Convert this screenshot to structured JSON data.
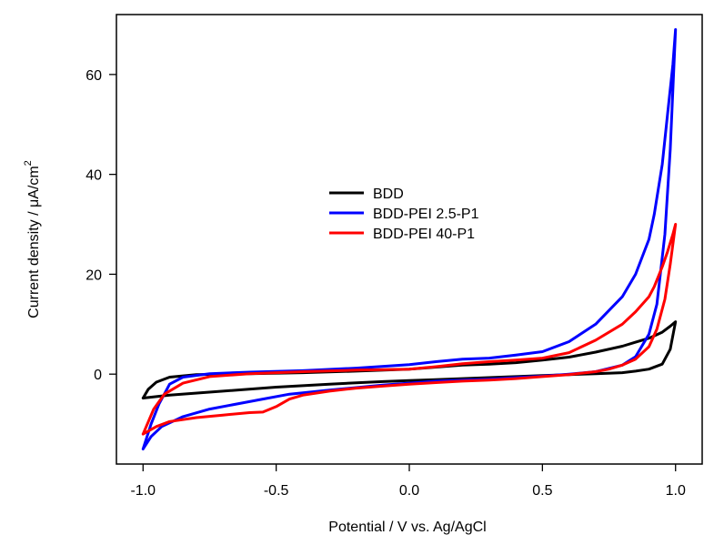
{
  "chart_data": {
    "type": "line",
    "title": "",
    "xlabel": "Potential / V vs. Ag/AgCl",
    "ylabel": "Current density / μA/cm",
    "ylabel_superscript": "2",
    "xlim": [
      -1.1,
      1.1
    ],
    "ylim": [
      -18,
      72
    ],
    "x_ticks": [
      -1.0,
      -0.5,
      0.0,
      0.5,
      1.0
    ],
    "x_tick_labels": [
      "-1.0",
      "-0.5",
      "0.0",
      "0.5",
      "1.0"
    ],
    "y_ticks": [
      0,
      20,
      40,
      60
    ],
    "y_tick_labels": [
      "0",
      "20",
      "40",
      "60"
    ],
    "grid": false,
    "legend_position": "center",
    "series": [
      {
        "name": "BDD",
        "color": "#000000",
        "points": [
          [
            -1.0,
            -4.8
          ],
          [
            -0.9,
            -4.2
          ],
          [
            -0.7,
            -3.4
          ],
          [
            -0.5,
            -2.6
          ],
          [
            -0.3,
            -2.0
          ],
          [
            -0.1,
            -1.5
          ],
          [
            0.0,
            -1.3
          ],
          [
            0.1,
            -1.1
          ],
          [
            0.2,
            -0.9
          ],
          [
            0.3,
            -0.7
          ],
          [
            0.4,
            -0.5
          ],
          [
            0.5,
            -0.3
          ],
          [
            0.6,
            -0.1
          ],
          [
            0.7,
            0.1
          ],
          [
            0.8,
            0.3
          ],
          [
            0.85,
            0.6
          ],
          [
            0.9,
            1.0
          ],
          [
            0.95,
            2.0
          ],
          [
            0.98,
            5.0
          ],
          [
            1.0,
            10.5
          ],
          [
            0.98,
            9.6
          ],
          [
            0.95,
            8.4
          ],
          [
            0.9,
            7.2
          ],
          [
            0.85,
            6.4
          ],
          [
            0.8,
            5.6
          ],
          [
            0.7,
            4.4
          ],
          [
            0.6,
            3.4
          ],
          [
            0.5,
            2.8
          ],
          [
            0.4,
            2.3
          ],
          [
            0.3,
            2.0
          ],
          [
            0.2,
            1.8
          ],
          [
            0.1,
            1.4
          ],
          [
            0.0,
            1.0
          ],
          [
            -0.2,
            0.6
          ],
          [
            -0.4,
            0.3
          ],
          [
            -0.6,
            0.1
          ],
          [
            -0.8,
            -0.1
          ],
          [
            -0.9,
            -0.6
          ],
          [
            -0.95,
            -1.6
          ],
          [
            -0.98,
            -3.0
          ],
          [
            -1.0,
            -4.8
          ]
        ]
      },
      {
        "name": "BDD-PEI 2.5-P1",
        "color": "#0000ff",
        "points": [
          [
            -1.0,
            -15.0
          ],
          [
            -0.97,
            -12.5
          ],
          [
            -0.93,
            -10.5
          ],
          [
            -0.85,
            -8.5
          ],
          [
            -0.75,
            -7.0
          ],
          [
            -0.65,
            -6.0
          ],
          [
            -0.55,
            -5.0
          ],
          [
            -0.45,
            -4.0
          ],
          [
            -0.3,
            -3.2
          ],
          [
            -0.1,
            -2.2
          ],
          [
            0.0,
            -1.8
          ],
          [
            0.1,
            -1.4
          ],
          [
            0.2,
            -1.2
          ],
          [
            0.3,
            -1.0
          ],
          [
            0.4,
            -0.7
          ],
          [
            0.5,
            -0.4
          ],
          [
            0.6,
            0.0
          ],
          [
            0.7,
            0.5
          ],
          [
            0.8,
            1.8
          ],
          [
            0.85,
            3.5
          ],
          [
            0.9,
            8.0
          ],
          [
            0.93,
            14.0
          ],
          [
            0.96,
            28.0
          ],
          [
            0.98,
            45.0
          ],
          [
            1.0,
            69.0
          ],
          [
            0.99,
            62.0
          ],
          [
            0.97,
            52.0
          ],
          [
            0.95,
            42.0
          ],
          [
            0.92,
            32.0
          ],
          [
            0.9,
            27.0
          ],
          [
            0.85,
            20.0
          ],
          [
            0.8,
            15.5
          ],
          [
            0.7,
            10.0
          ],
          [
            0.6,
            6.5
          ],
          [
            0.5,
            4.5
          ],
          [
            0.4,
            3.8
          ],
          [
            0.3,
            3.2
          ],
          [
            0.2,
            3.0
          ],
          [
            0.1,
            2.5
          ],
          [
            0.0,
            1.9
          ],
          [
            -0.2,
            1.2
          ],
          [
            -0.4,
            0.7
          ],
          [
            -0.6,
            0.4
          ],
          [
            -0.75,
            0.1
          ],
          [
            -0.85,
            -0.6
          ],
          [
            -0.9,
            -2.0
          ],
          [
            -0.94,
            -6.0
          ],
          [
            -0.97,
            -10.0
          ],
          [
            -1.0,
            -15.0
          ]
        ]
      },
      {
        "name": "BDD-PEI 40-P1",
        "color": "#ff0000",
        "points": [
          [
            -1.0,
            -12.0
          ],
          [
            -0.95,
            -10.5
          ],
          [
            -0.9,
            -9.5
          ],
          [
            -0.8,
            -8.7
          ],
          [
            -0.7,
            -8.2
          ],
          [
            -0.6,
            -7.7
          ],
          [
            -0.55,
            -7.6
          ],
          [
            -0.5,
            -6.5
          ],
          [
            -0.45,
            -5.0
          ],
          [
            -0.4,
            -4.2
          ],
          [
            -0.3,
            -3.4
          ],
          [
            -0.2,
            -2.8
          ],
          [
            -0.1,
            -2.4
          ],
          [
            0.0,
            -2.0
          ],
          [
            0.1,
            -1.7
          ],
          [
            0.2,
            -1.4
          ],
          [
            0.3,
            -1.2
          ],
          [
            0.4,
            -0.9
          ],
          [
            0.5,
            -0.5
          ],
          [
            0.6,
            -0.1
          ],
          [
            0.7,
            0.5
          ],
          [
            0.75,
            1.0
          ],
          [
            0.8,
            1.8
          ],
          [
            0.85,
            3.0
          ],
          [
            0.9,
            5.5
          ],
          [
            0.93,
            9.0
          ],
          [
            0.96,
            15.0
          ],
          [
            0.98,
            22.0
          ],
          [
            1.0,
            30.0
          ],
          [
            0.99,
            28.0
          ],
          [
            0.97,
            24.5
          ],
          [
            0.95,
            21.5
          ],
          [
            0.92,
            17.5
          ],
          [
            0.9,
            15.5
          ],
          [
            0.85,
            12.5
          ],
          [
            0.8,
            10.0
          ],
          [
            0.7,
            6.8
          ],
          [
            0.6,
            4.3
          ],
          [
            0.5,
            3.2
          ],
          [
            0.4,
            2.8
          ],
          [
            0.3,
            2.5
          ],
          [
            0.2,
            2.1
          ],
          [
            0.1,
            1.5
          ],
          [
            0.0,
            1.0
          ],
          [
            -0.2,
            0.8
          ],
          [
            -0.4,
            0.5
          ],
          [
            -0.6,
            0.1
          ],
          [
            -0.75,
            -0.5
          ],
          [
            -0.85,
            -1.8
          ],
          [
            -0.92,
            -4.0
          ],
          [
            -0.96,
            -7.0
          ],
          [
            -1.0,
            -12.0
          ]
        ]
      }
    ]
  }
}
